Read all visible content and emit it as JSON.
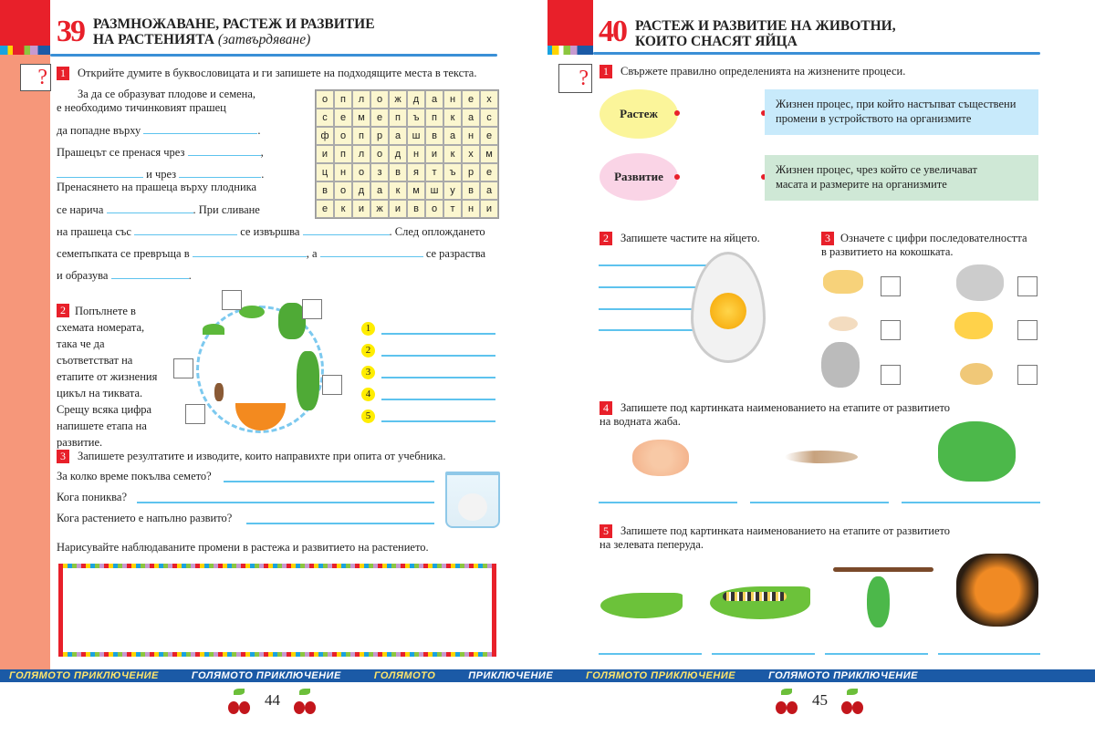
{
  "left_page": {
    "lesson_number": "39",
    "title_line1": "РАЗМНОЖАВАНЕ, РАСТЕЖ И РАЗВИТИЕ",
    "title_line2": "НА РАСТЕНИЯТА",
    "title_suffix": "(затвърдяване)",
    "task1": {
      "number": "1",
      "instruction": "Открийте думите в буквословицата и ги запишете на подходящите места в текста.",
      "text": [
        "За да се образуват плодове и семена,",
        "е необходимо тичинковият прашец",
        "да попадне върху",
        "Прашецът се пренася чрез",
        "и чрез",
        "Пренасянето на прашеца върху плодника",
        "се нарича",
        ". При сливане",
        "на прашеца със",
        "се извършва",
        ". След оплождането",
        "семепъпката се превръща в",
        ", а",
        "се разраства",
        "и образува"
      ],
      "grid": [
        [
          "о",
          "п",
          "л",
          "о",
          "ж",
          "д",
          "а",
          "н",
          "е",
          "х"
        ],
        [
          "с",
          "е",
          "м",
          "е",
          "п",
          "ъ",
          "п",
          "к",
          "а",
          "с"
        ],
        [
          "ф",
          "о",
          "п",
          "р",
          "а",
          "ш",
          "в",
          "а",
          "н",
          "е"
        ],
        [
          "и",
          "п",
          "л",
          "о",
          "д",
          "н",
          "и",
          "к",
          "х",
          "м"
        ],
        [
          "ц",
          "н",
          "о",
          "з",
          "в",
          "я",
          "т",
          "ъ",
          "р",
          "е"
        ],
        [
          "в",
          "о",
          "д",
          "а",
          "к",
          "м",
          "ш",
          "у",
          "в",
          "а"
        ],
        [
          "е",
          "к",
          "и",
          "ж",
          "и",
          "в",
          "о",
          "т",
          "н",
          "и"
        ]
      ]
    },
    "task2": {
      "number": "2",
      "instruction": [
        "Попълнете в",
        "схемата номерата,",
        "така че да",
        "съответстват на",
        "етапите от жизнения",
        "цикъл на тиквата.",
        "Срещу всяка цифра",
        "напишете етапа на",
        "развитие."
      ],
      "items": [
        "1",
        "2",
        "3",
        "4",
        "5"
      ]
    },
    "task3": {
      "number": "3",
      "instruction": "Запишете резултатите и изводите, които направихте при опита от учебника.",
      "questions": [
        "За колко време покълва семето?",
        "Кога  пониква?",
        "Кога растението е напълно развито?"
      ],
      "draw_prompt": "Нарисувайте наблюдаваните промени в растежа и развитието на растението."
    },
    "page_number": "44"
  },
  "right_page": {
    "lesson_number": "40",
    "title_line1": "РАСТЕЖ И РАЗВИТИЕ НА ЖИВОТНИ,",
    "title_line2": "КОИТО СНАСЯТ ЯЙЦА",
    "task1": {
      "number": "1",
      "instruction": "Свържете правилно определенията на жизнените процеси.",
      "terms": [
        "Растеж",
        "Развитие"
      ],
      "definitions": [
        [
          "Жизнен процес, при който настъпват съществени",
          "промени в устройството на организмите"
        ],
        [
          "Жизнен процес, чрез който се  увеличават",
          "масата и размерите на организмите"
        ]
      ]
    },
    "task2": {
      "number": "2",
      "instruction": "Запишете частите на яйцето."
    },
    "task3": {
      "number": "3",
      "instruction": [
        "Означете с цифри последователността",
        "в развитието на кокошката."
      ]
    },
    "task4": {
      "number": "4",
      "instruction": [
        "Запишете под картинката наименованието на етапите от развитието",
        "на водната жаба."
      ]
    },
    "task5": {
      "number": "5",
      "instruction": [
        "Запишете под картинката наименованието на етапите от развитието",
        "на зелевата пеперуда."
      ]
    },
    "page_number": "45"
  },
  "banner": [
    "ГОЛЯМОТО ПРИКЛЮЧЕНИЕ",
    "ГОЛЯМОТО ПРИКЛЮЧЕНИЕ",
    "ГОЛЯМОТО",
    "ПРИКЛЮЧЕНИЕ",
    "ГОЛЯМОТО ПРИКЛЮЧЕНИЕ",
    "ГОЛЯМОТО ПРИКЛЮЧЕНИЕ"
  ],
  "colors": {
    "accent_red": "#e8202a",
    "side_strip": "#f6977a",
    "line_blue": "#5ec3ee",
    "banner_blue": "#1b5aa6"
  }
}
